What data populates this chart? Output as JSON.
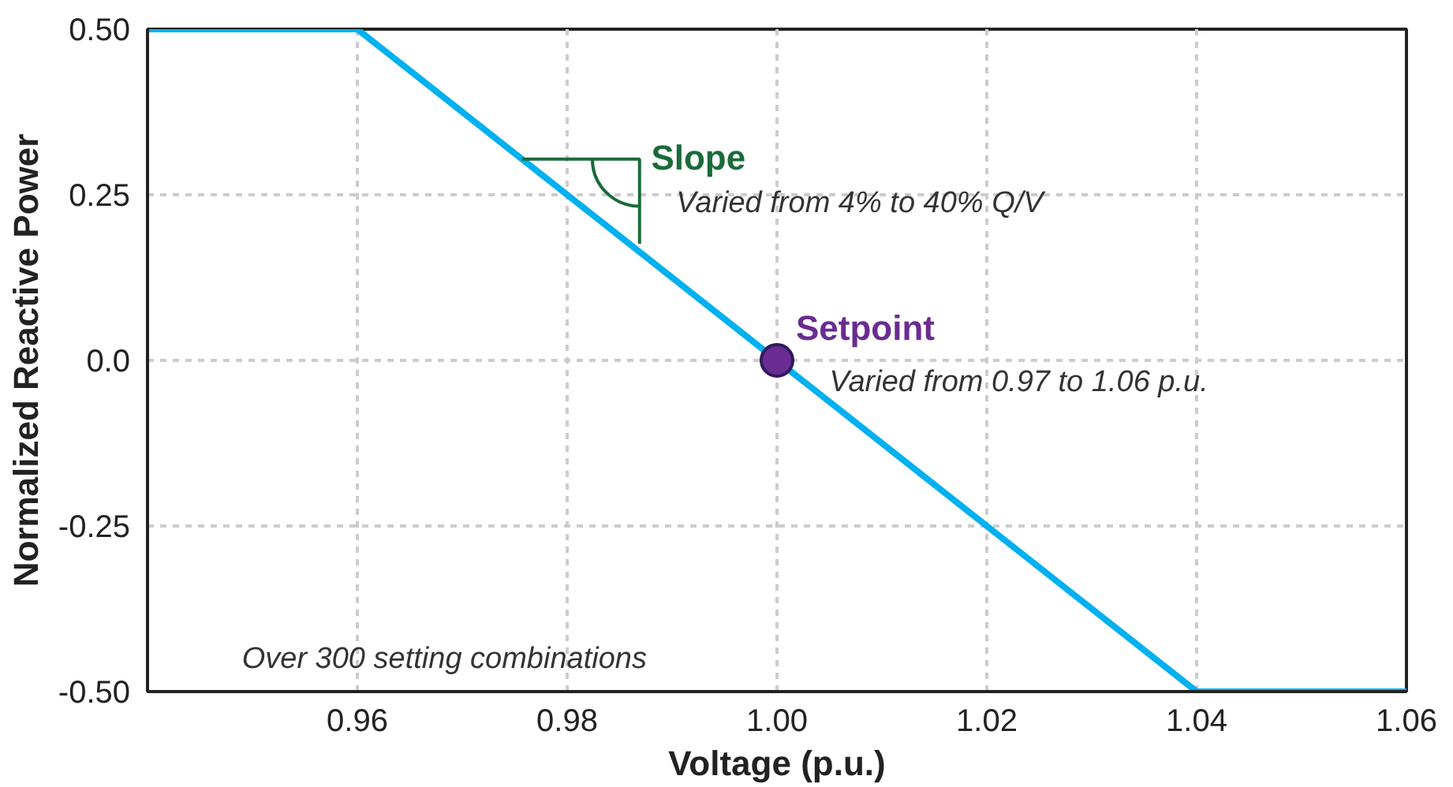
{
  "chart_data": {
    "type": "line",
    "xlabel": "Voltage (p.u.)",
    "ylabel": "Normalized Reactive Power",
    "xlim": [
      0.94,
      1.06
    ],
    "xticks": [
      {
        "value": 0.96,
        "label": "0.96"
      },
      {
        "value": 0.98,
        "label": "0.98"
      },
      {
        "value": 1.0,
        "label": "1.00"
      },
      {
        "value": 1.02,
        "label": "1.02"
      },
      {
        "value": 1.04,
        "label": "1.04"
      },
      {
        "value": 1.06,
        "label": "1.06"
      }
    ],
    "ylim": [
      -0.5,
      0.5
    ],
    "yticks": [
      {
        "value": -0.5,
        "label": "-0.50"
      },
      -0.25,
      {
        "value": 0,
        "label": "0.0"
      },
      0.25,
      {
        "value": 0.5,
        "label": "0.50"
      }
    ],
    "grid": true,
    "legend": false,
    "series": [
      {
        "color": "#00b0f0",
        "x": [
          0.94,
          0.96,
          1.04,
          1.06
        ],
        "values": [
          0.5,
          0.5,
          -0.5,
          -0.5
        ]
      },
      {
        "type": "scatter",
        "name": "Setpoint",
        "color": "#6a2c91",
        "x": [
          1.0
        ],
        "values": [
          0
        ]
      }
    ],
    "annotations": [
      "Slope",
      "Varied from 4% to 40% Q/V",
      "Varied from 0.97 to 1.06 p.u.",
      "Over 300 setting combinations"
    ]
  }
}
